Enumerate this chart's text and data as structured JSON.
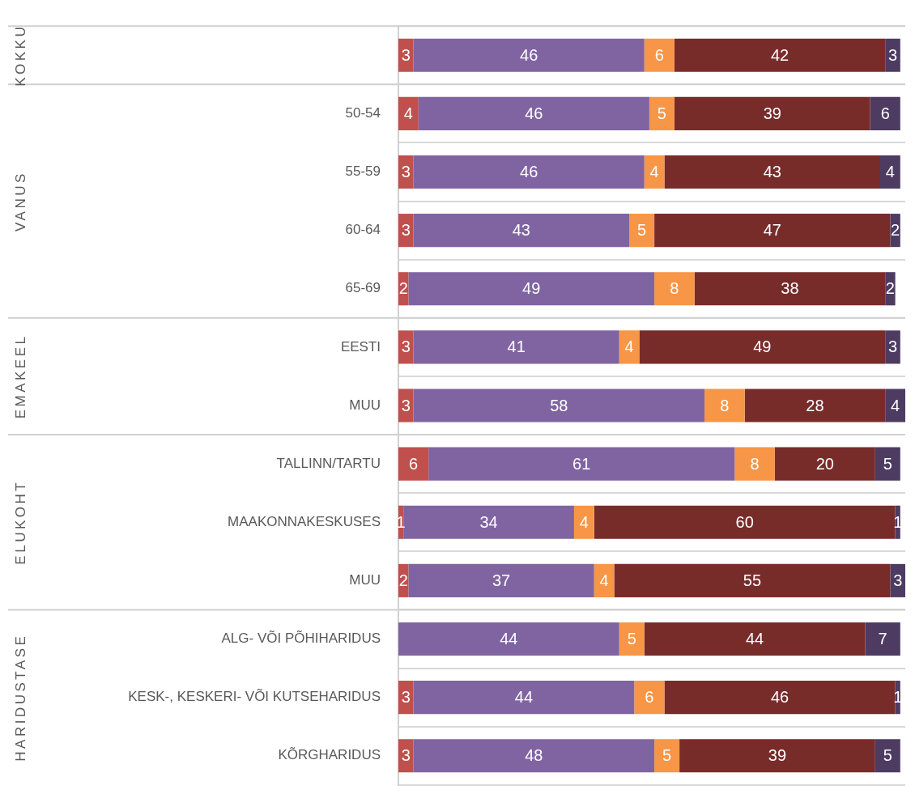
{
  "chart_data": {
    "type": "bar",
    "orientation": "horizontal",
    "stacked": true,
    "data_labels": true,
    "grid": "y",
    "legend": false,
    "categories": [
      null,
      "50-54",
      "55-59",
      "60-64",
      "65-69",
      "EESTI",
      "MUU",
      "TALLINN/TARTU",
      "MAAKONNAKESKUSES",
      "MUU",
      "ALG- VÕI PÕHIHARIDUS",
      "KESK-, KESKERI- VÕI KUTSEHARIDUS",
      "KÕRGHARIDUS"
    ],
    "xlim": [
      0,
      101
    ],
    "series": [
      {
        "color": "#c0504d",
        "values": [
          3,
          4,
          3,
          3,
          2,
          3,
          3,
          6,
          1,
          2,
          null,
          3,
          3
        ]
      },
      {
        "color": "#8064a2",
        "values": [
          46,
          46,
          46,
          43,
          49,
          41,
          58,
          61,
          34,
          37,
          44,
          44,
          48
        ]
      },
      {
        "color": "#f79646",
        "values": [
          6,
          5,
          4,
          5,
          8,
          4,
          8,
          8,
          4,
          4,
          5,
          6,
          5
        ]
      },
      {
        "color": "#772c2a",
        "values": [
          42,
          39,
          43,
          47,
          38,
          49,
          28,
          20,
          60,
          55,
          44,
          46,
          39
        ]
      },
      {
        "color": "#4d3b62",
        "values": [
          3,
          6,
          4,
          2,
          2,
          3,
          4,
          5,
          1,
          3,
          7,
          1,
          5
        ]
      }
    ],
    "annotations": [
      "KOKKU",
      "VANUS",
      "EMAKEEL",
      "ELUKOHT",
      "HARIDUSTASE"
    ]
  }
}
